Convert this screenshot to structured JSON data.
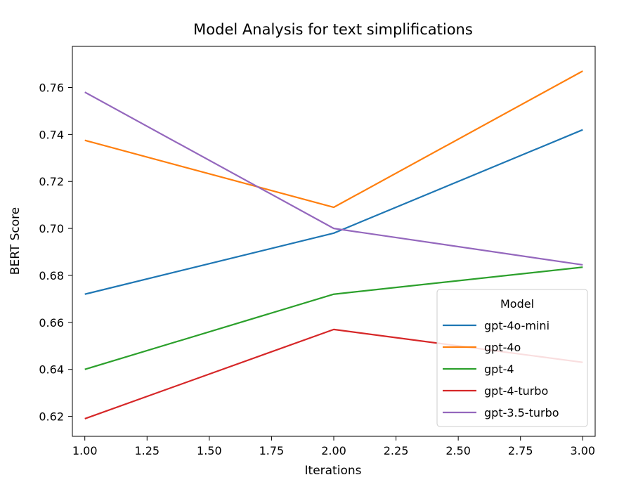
{
  "chart_data": {
    "type": "line",
    "title": "Model Analysis for text simplifications",
    "xlabel": "Iterations",
    "ylabel": "BERT Score",
    "x": [
      1.0,
      2.0,
      3.0
    ],
    "xlim": [
      0.95,
      3.05
    ],
    "ylim": [
      0.6115,
      0.7775
    ],
    "xticks": [
      "1.00",
      "1.25",
      "1.50",
      "1.75",
      "2.00",
      "2.25",
      "2.50",
      "2.75",
      "3.00"
    ],
    "yticks": [
      "0.62",
      "0.64",
      "0.66",
      "0.68",
      "0.70",
      "0.72",
      "0.74",
      "0.76"
    ],
    "grid": false,
    "legend": {
      "title": "Model",
      "placement": "lower-right"
    },
    "series": [
      {
        "name": "gpt-4o-mini",
        "color": "#1f77b4",
        "values": [
          0.672,
          0.698,
          0.742
        ]
      },
      {
        "name": "gpt-4o",
        "color": "#ff7f0e",
        "values": [
          0.7375,
          0.709,
          0.767
        ]
      },
      {
        "name": "gpt-4",
        "color": "#2ca02c",
        "values": [
          0.64,
          0.672,
          0.6835
        ]
      },
      {
        "name": "gpt-4-turbo",
        "color": "#d62728",
        "values": [
          0.619,
          0.657,
          0.643
        ]
      },
      {
        "name": "gpt-3.5-turbo",
        "color": "#9467bd",
        "values": [
          0.758,
          0.7,
          0.6845
        ]
      }
    ]
  }
}
